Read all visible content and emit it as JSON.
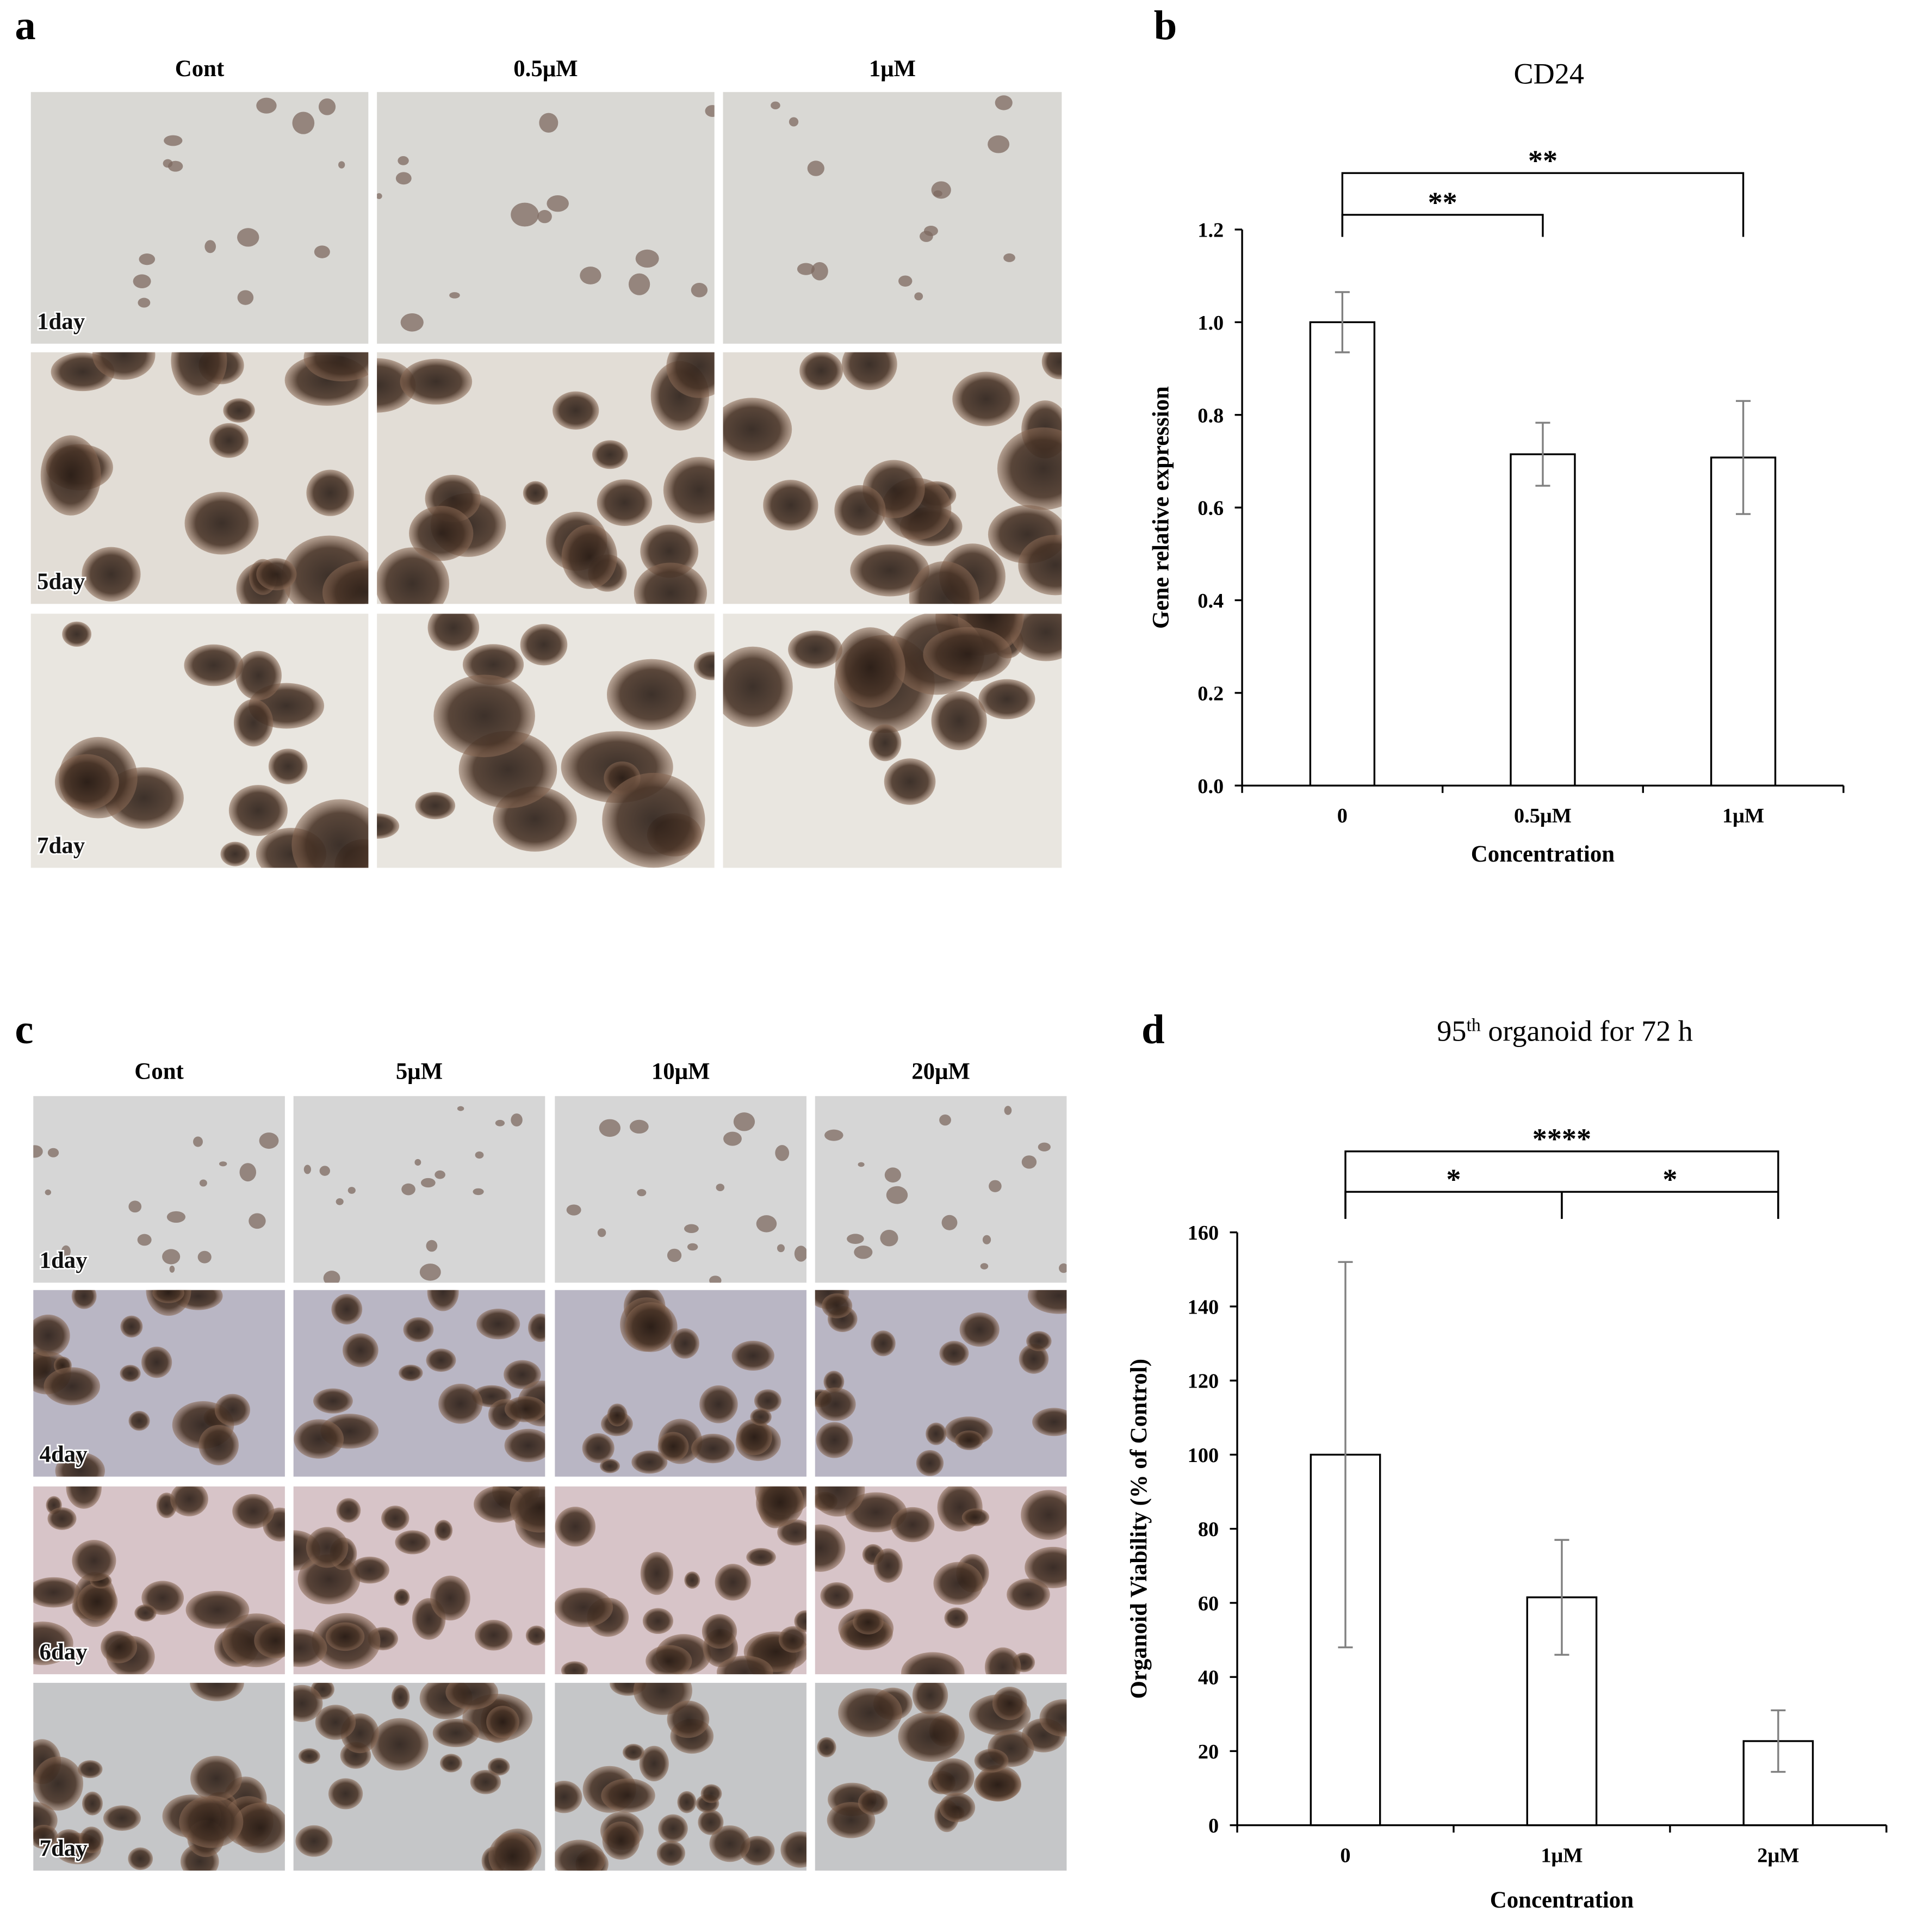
{
  "panel_labels": [
    "a",
    "b",
    "c",
    "d"
  ],
  "image_grids": [
    {
      "columns": [
        "Cont",
        "0.5μM",
        "1μM"
      ],
      "rows": [
        "1day",
        "5day",
        "7day"
      ]
    },
    {
      "columns": [
        "Cont",
        "5μM",
        "10μM",
        "20μM"
      ],
      "rows": [
        "1day",
        "4day",
        "6day",
        "7day"
      ]
    }
  ],
  "chart_data": [
    {
      "type": "bar",
      "title": [
        {
          "text": "CD24"
        }
      ],
      "categories": [
        "0",
        "0.5μM",
        "1μM"
      ],
      "values": [
        1.0,
        0.715,
        0.708
      ],
      "errors": [
        0.065,
        0.068,
        0.122
      ],
      "color": "#ffffff",
      "error_color": "#808080",
      "x_label": "Concentration",
      "y_label": "Gene relative expression",
      "ylim": [
        0,
        1.2
      ],
      "yticks": [
        {
          "value": 0,
          "label": "0.0"
        },
        0.2,
        0.4,
        0.6,
        0.8,
        {
          "value": 1,
          "label": "1.0"
        },
        1.2
      ],
      "significance": [
        {
          "pair": [
            0,
            1
          ],
          "label": "**"
        },
        {
          "pair": [
            0,
            2
          ],
          "label": "**"
        }
      ]
    },
    {
      "type": "bar",
      "title": [
        {
          "text": "95"
        },
        {
          "text": "th",
          "sup": true
        },
        {
          "text": " organoid for 72 h"
        }
      ],
      "categories": [
        "0",
        "1μM",
        "2μM"
      ],
      "values": [
        100,
        61.5,
        22.7
      ],
      "errors": [
        52,
        15.5,
        8.3
      ],
      "color": "#ffffff",
      "error_color": "#808080",
      "x_label": "Concentration",
      "y_label": "Organoid Viability (% of Control)",
      "ylim": [
        0,
        160
      ],
      "yticks": [
        0,
        20,
        40,
        60,
        80,
        100,
        120,
        140,
        160
      ],
      "significance": [
        {
          "pair": [
            0,
            1
          ],
          "label": "*"
        },
        {
          "pair": [
            1,
            2
          ],
          "label": "*"
        },
        {
          "pair": [
            0,
            2
          ],
          "label": "****"
        }
      ]
    }
  ]
}
